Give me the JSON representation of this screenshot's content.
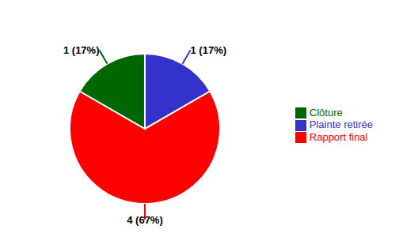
{
  "chart_data": {
    "type": "pie",
    "categories": [
      "Plainte retirée",
      "Rapport final",
      "Clôture"
    ],
    "values": [
      1,
      4,
      1
    ],
    "value_labels": [
      "1 (17%)",
      "4 (67%)",
      "1 (17%)"
    ],
    "colors": [
      "#3333CC",
      "#FF0000",
      "#006600"
    ],
    "data_labels": true,
    "legend": "right"
  }
}
